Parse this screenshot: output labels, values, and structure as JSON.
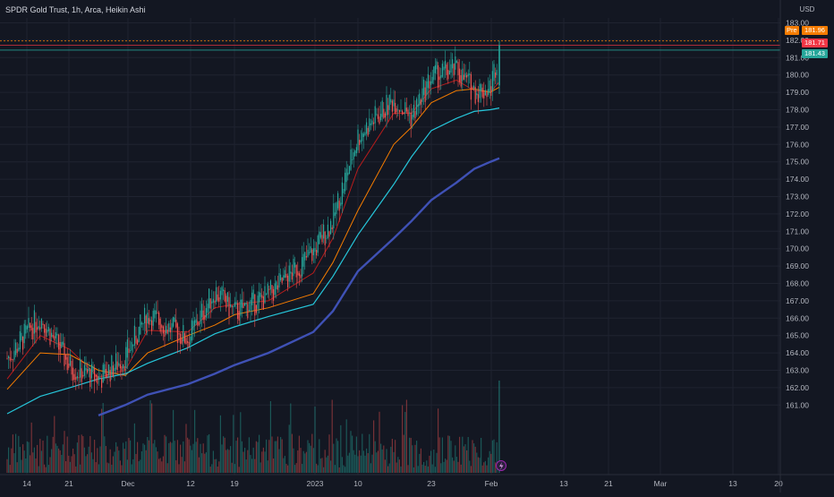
{
  "legend": {
    "title": "SPDR Gold Trust, 1h, Arca, Heikin Ashi"
  },
  "currency": "USD",
  "price_badges": {
    "pre_label": "Pre",
    "pre_value": "181.96",
    "last_value": "181.71",
    "ma_value": "181.43"
  },
  "colors": {
    "background": "#131722",
    "grid": "#1f2330",
    "up": "#26a69a",
    "down": "#ef5350",
    "ma_fast": "#b71c1c",
    "ma_mid": "#f57c00",
    "ma_slow": "#26c6da",
    "ma_long": "#3f51b5",
    "pre_badge": "#f57c00",
    "last_badge": "#f23645",
    "ma_badge": "#26a69a"
  },
  "chart_data": {
    "type": "line",
    "style": "heikin-ashi candlestick with volume",
    "x_tick_labels": [
      "14",
      "21",
      "Dec",
      "12",
      "19",
      "2023",
      "10",
      "23",
      "Feb",
      "13",
      "21",
      "Mar",
      "13",
      "20"
    ],
    "y_tick_labels": [
      "183.00",
      "182.00",
      "181.00",
      "180.00",
      "179.00",
      "178.00",
      "177.00",
      "176.00",
      "175.00",
      "174.00",
      "173.00",
      "172.00",
      "171.00",
      "170.00",
      "169.00",
      "168.00",
      "167.00",
      "166.00",
      "165.00",
      "164.00",
      "163.00",
      "162.00",
      "161.00"
    ],
    "ylim": [
      160.5,
      183.8
    ],
    "grid": true,
    "x": [
      "Nov 14",
      "Nov 17",
      "Nov 21",
      "Nov 25",
      "Dec 1",
      "Dec 6",
      "Dec 12",
      "Dec 16",
      "Dec 19",
      "Dec 23",
      "Jan 3",
      "Jan 6",
      "Jan 10",
      "Jan 13",
      "Jan 18",
      "Jan 23",
      "Jan 26",
      "Jan 30",
      "Feb 1",
      "Feb 2"
    ],
    "series": [
      {
        "name": "",
        "role": "close",
        "values": [
          163.7,
          166.1,
          163.2,
          162.5,
          163.8,
          166.2,
          164.8,
          167.6,
          166.3,
          167.3,
          169.8,
          171.7,
          176.5,
          178.6,
          177.6,
          179.9,
          180.3,
          179.1,
          179.2,
          181.7
        ]
      },
      {
        "name": "",
        "role": "ma-fast",
        "values": [
          162.5,
          165.0,
          164.2,
          162.6,
          163.0,
          165.3,
          165.2,
          166.6,
          166.8,
          167.0,
          168.6,
          170.6,
          174.6,
          177.8,
          177.8,
          179.2,
          179.7,
          179.1,
          179.0,
          179.6
        ]
      },
      {
        "name": "",
        "role": "ma-mid",
        "values": [
          161.9,
          164.0,
          163.9,
          163.0,
          162.7,
          164.0,
          165.0,
          165.6,
          166.2,
          166.6,
          167.4,
          169.2,
          172.2,
          176.0,
          177.0,
          178.4,
          179.1,
          179.2,
          179.0,
          179.3
        ]
      },
      {
        "name": "",
        "role": "ma-slow",
        "values": [
          160.5,
          161.5,
          162.0,
          162.5,
          162.8,
          163.4,
          164.3,
          165.1,
          165.5,
          166.1,
          166.8,
          168.4,
          170.8,
          173.7,
          175.3,
          176.8,
          177.5,
          177.9,
          178.0,
          178.1
        ]
      },
      {
        "name": "",
        "role": "ma-long",
        "values": [
          null,
          null,
          null,
          160.4,
          161.0,
          161.6,
          162.2,
          162.8,
          163.3,
          164.0,
          165.2,
          166.4,
          168.7,
          170.6,
          171.6,
          172.8,
          173.8,
          174.6,
          175.0,
          175.2
        ]
      }
    ],
    "horizontal_lines": [
      {
        "label": "Pre",
        "value": 181.96
      },
      {
        "label": "",
        "value": 181.71
      },
      {
        "label": "",
        "value": 181.43
      }
    ],
    "volume": {
      "shown": true,
      "peak_near": "Feb 2"
    }
  }
}
